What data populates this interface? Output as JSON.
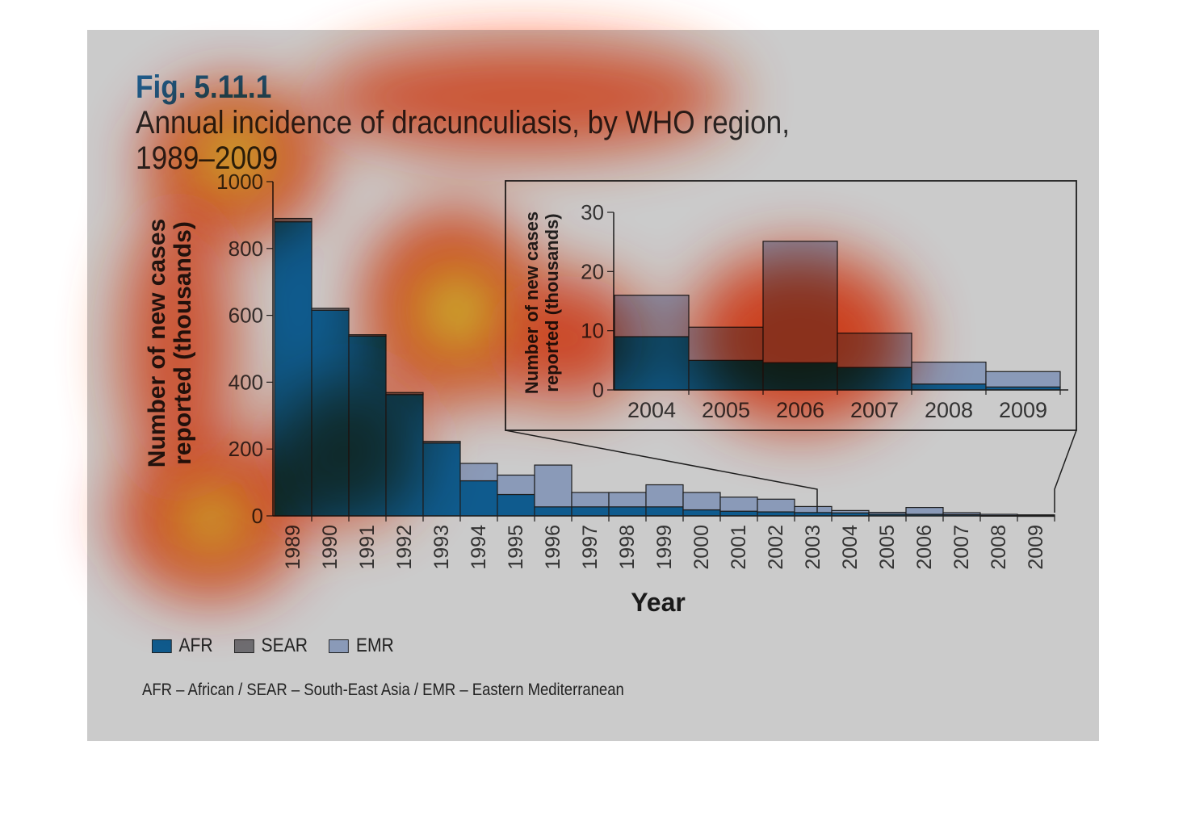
{
  "title": {
    "number": "Fig. 5.11.1",
    "text": "Annual incidence of dracunculiasis, by WHO region, 1989–2009"
  },
  "colors": {
    "AFR": "#0f5b8e",
    "SEAR": "#6e6e72",
    "EMR": "#8a9ab8",
    "background": "#cbcbcb",
    "outline": "#1e1e1e"
  },
  "legend": [
    {
      "key": "AFR",
      "label": "AFR"
    },
    {
      "key": "SEAR",
      "label": "SEAR"
    },
    {
      "key": "EMR",
      "label": "EMR"
    }
  ],
  "footnote": "AFR – African / SEAR – South-East Asia / EMR – Eastern Mediterranean",
  "chart_data": [
    {
      "type": "bar",
      "stacked": true,
      "xlabel": "Year",
      "ylabel": "Number of new cases reported (thousands)",
      "ylim": [
        0,
        1000
      ],
      "yticks": [
        "0",
        "200",
        "400",
        "600",
        "800",
        "1000"
      ],
      "categories": [
        "1989",
        "1990",
        "1991",
        "1992",
        "1993",
        "1994",
        "1995",
        "1996",
        "1997",
        "1998",
        "1999",
        "2000",
        "2001",
        "2002",
        "2003",
        "2004",
        "2005",
        "2006",
        "2007",
        "2008",
        "2009"
      ],
      "series": [
        {
          "name": "AFR",
          "values": [
            880,
            615,
            538,
            363,
            218,
            105,
            64,
            27,
            27,
            27,
            27,
            18,
            14,
            12,
            10,
            9,
            5,
            4.6,
            3.8,
            1,
            0.5
          ]
        },
        {
          "name": "SEAR",
          "values": [
            10,
            6,
            4,
            6,
            5,
            0,
            0,
            0,
            0,
            0,
            0,
            0,
            0,
            0,
            0,
            0,
            0,
            0,
            0,
            0,
            0
          ]
        },
        {
          "name": "EMR",
          "values": [
            0,
            0,
            0,
            0,
            0,
            52,
            58,
            125,
            43,
            43,
            66,
            52,
            42,
            38,
            18,
            7,
            5.6,
            20.5,
            5.8,
            3.7,
            2.6
          ]
        }
      ],
      "grid": false,
      "legend_position": "bottom-left"
    },
    {
      "type": "bar",
      "stacked": true,
      "inset": true,
      "ylabel": "Number of new cases reported (thousands)",
      "ylim": [
        0,
        30
      ],
      "yticks": [
        "0",
        "10",
        "20",
        "30"
      ],
      "categories": [
        "2004",
        "2005",
        "2006",
        "2007",
        "2008",
        "2009"
      ],
      "series": [
        {
          "name": "AFR",
          "values": [
            9,
            5,
            4.6,
            3.8,
            1,
            0.5
          ]
        },
        {
          "name": "EMR",
          "values": [
            7,
            5.6,
            20.5,
            5.8,
            3.7,
            2.6
          ]
        }
      ]
    }
  ]
}
